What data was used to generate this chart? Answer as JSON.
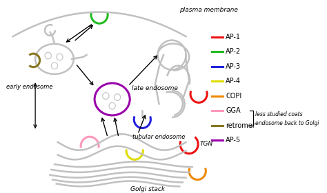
{
  "background_color": "#ffffff",
  "gray": "#c0c0c0",
  "dark_gray": "#a0a0a0",
  "legend_items": [
    {
      "label": "AP-1",
      "color": "#ee1111"
    },
    {
      "label": "AP-2",
      "color": "#22bb22"
    },
    {
      "label": "AP-3",
      "color": "#2222dd"
    },
    {
      "label": "AP-4",
      "color": "#dddd00"
    },
    {
      "label": "COPI",
      "color": "#ee8800"
    },
    {
      "label": "GGA",
      "color": "#ff99bb"
    },
    {
      "label": "retromer",
      "color": "#887722"
    },
    {
      "label": "AP-5",
      "color": "#9900aa"
    }
  ],
  "annotation_text1": "less studied coats",
  "annotation_text2": "endosome back to Golgi",
  "label_plasma_membrane": "plasma membrane",
  "label_early_endosome": "early endosome",
  "label_late_endosome": "late endosome",
  "label_tubular_endosome": "tubular endosome",
  "label_TGN": "TGN",
  "label_golgi": "Golgi stack"
}
